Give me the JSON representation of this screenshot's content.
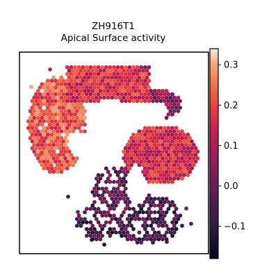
{
  "chart_data": {
    "type": "heatmap",
    "subtype": "spatial-hexbin",
    "title": "ZH916T1",
    "subtitle": "Apical Surface activity",
    "xlabel": "",
    "ylabel": "",
    "grid": false,
    "colormap": "rocket",
    "colorbar": {
      "range": [
        -0.18,
        0.34
      ],
      "ticks": [
        -0.1,
        0.0,
        0.1,
        0.2,
        0.3
      ],
      "tick_labels": [
        "−0.1",
        "0.0",
        "0.1",
        "0.2",
        "0.3"
      ],
      "position": "right"
    },
    "regions": [
      {
        "name": "upper-left-arc",
        "value": 0.22
      },
      {
        "name": "top-band",
        "value": 0.16
      },
      {
        "name": "right-middle-lobe",
        "value": 0.15
      },
      {
        "name": "inner-top-edge",
        "value": 0.05
      },
      {
        "name": "lower-stem",
        "value": -0.02
      },
      {
        "name": "bottom-cluster",
        "value": -0.06
      }
    ]
  },
  "colors": {
    "background": "#ffffff",
    "axes_frame": "#000000",
    "text": "#000000"
  }
}
